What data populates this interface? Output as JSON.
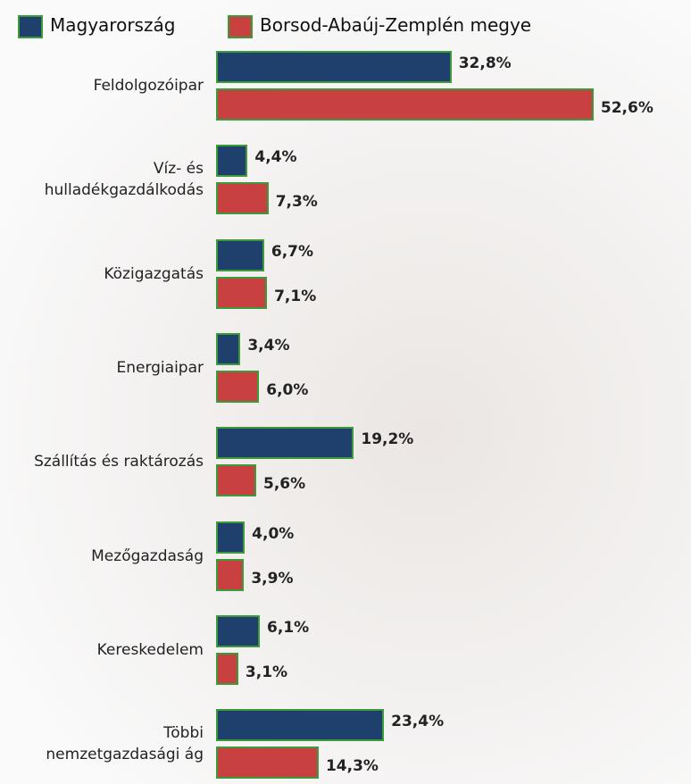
{
  "chart_data": {
    "type": "hbar",
    "categories": [
      "Feldolgozóipar",
      "Víz- és\nhulladékgazdálkodás",
      "Közigazgatás",
      "Energiaipar",
      "Szállítás és raktározás",
      "Mezőgazdaság",
      "Kereskedelem",
      "Többi\nnemzetgazdasági ág"
    ],
    "series": [
      {
        "name": "Magyarország",
        "color": "#1f3f6d",
        "values": [
          32.8,
          4.4,
          6.7,
          3.4,
          19.2,
          4.0,
          6.1,
          23.4
        ],
        "value_labels": [
          "32,8%",
          "4,4%",
          "6,7%",
          "3,4%",
          "19,2%",
          "4,0%",
          "6,1%",
          "23,4%"
        ]
      },
      {
        "name": "Borsod-Abaúj-Zemplén megye",
        "color": "#c8403f",
        "values": [
          52.6,
          7.3,
          7.1,
          6.0,
          5.6,
          3.9,
          3.1,
          14.3
        ],
        "value_labels": [
          "52,6%",
          "7,3%",
          "7,1%",
          "6,0%",
          "5,6%",
          "3,9%",
          "3,1%",
          "14,3%"
        ]
      }
    ],
    "bar_border": "#3c9a3a"
  }
}
